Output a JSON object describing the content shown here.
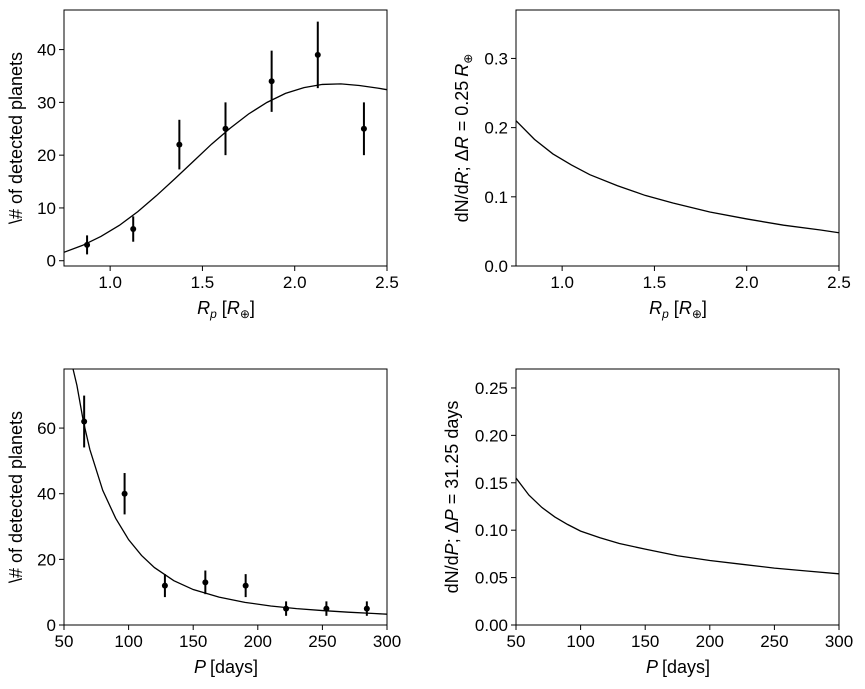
{
  "chart_data": [
    {
      "type": "scatter",
      "position": "top-left",
      "xlabel_main": "R",
      "xlabel_sub": "p",
      "xlabel_unit_main": "R",
      "xlabel_unit_symbol": "⊕",
      "ylabel": "\\# of detected planets",
      "xlim": [
        0.75,
        2.5
      ],
      "ylim": [
        -1,
        47.5
      ],
      "xticks": [
        1.0,
        1.5,
        2.0,
        2.5
      ],
      "xtick_labels": [
        "1.0",
        "1.5",
        "2.0",
        "2.5"
      ],
      "yticks": [
        0,
        10,
        20,
        30,
        40
      ],
      "ytick_labels": [
        "0",
        "10",
        "20",
        "30",
        "40"
      ],
      "series": [
        {
          "kind": "errorbar",
          "x": [
            0.875,
            1.125,
            1.375,
            1.625,
            1.875,
            2.125,
            2.375
          ],
          "y": [
            3,
            6,
            22,
            25,
            34,
            39,
            25
          ],
          "yerr": [
            1.8,
            2.4,
            4.7,
            5.0,
            5.8,
            6.3,
            5.0
          ]
        },
        {
          "kind": "line",
          "x": [
            0.75,
            0.85,
            0.95,
            1.05,
            1.15,
            1.25,
            1.35,
            1.45,
            1.55,
            1.65,
            1.75,
            1.85,
            1.95,
            2.05,
            2.15,
            2.25,
            2.35,
            2.45,
            2.5
          ],
          "y": [
            1.6,
            2.9,
            4.6,
            6.7,
            9.3,
            12.3,
            15.5,
            18.8,
            22.1,
            25.1,
            27.8,
            30.0,
            31.7,
            32.8,
            33.4,
            33.5,
            33.2,
            32.7,
            32.4
          ]
        }
      ]
    },
    {
      "type": "line",
      "position": "top-right",
      "xlabel_main": "R",
      "xlabel_sub": "p",
      "xlabel_unit_main": "R",
      "xlabel_unit_symbol": "⊕",
      "ylabel_prefix": "dN/d",
      "ylabel_var": "R",
      "ylabel_sep": "; Δ",
      "ylabel_var2": "R",
      "ylabel_eq": " = 0.25",
      "ylabel_unit": "R",
      "ylabel_symbol": "⊕",
      "xlim": [
        0.75,
        2.5
      ],
      "ylim": [
        0.0,
        0.37
      ],
      "xticks": [
        1.0,
        1.5,
        2.0,
        2.5
      ],
      "xtick_labels": [
        "1.0",
        "1.5",
        "2.0",
        "2.5"
      ],
      "yticks": [
        0.0,
        0.1,
        0.2,
        0.3
      ],
      "ytick_labels": [
        "0.0",
        "0.1",
        "0.2",
        "0.3"
      ],
      "series": [
        {
          "kind": "line",
          "x": [
            0.75,
            0.85,
            0.95,
            1.05,
            1.15,
            1.3,
            1.45,
            1.6,
            1.8,
            2.0,
            2.2,
            2.4,
            2.5
          ],
          "y": [
            0.21,
            0.183,
            0.162,
            0.146,
            0.132,
            0.116,
            0.102,
            0.091,
            0.078,
            0.068,
            0.059,
            0.052,
            0.048
          ]
        }
      ]
    },
    {
      "type": "scatter",
      "position": "bottom-left",
      "xlabel_main": "P",
      "xlabel_unit": "[days]",
      "ylabel": "\\# of detected planets",
      "xlim": [
        50,
        300
      ],
      "ylim": [
        0,
        78
      ],
      "xticks": [
        50,
        100,
        150,
        200,
        250,
        300
      ],
      "xtick_labels": [
        "50",
        "100",
        "150",
        "200",
        "250",
        "300"
      ],
      "yticks": [
        0,
        20,
        40,
        60
      ],
      "ytick_labels": [
        "0",
        "20",
        "40",
        "60"
      ],
      "series": [
        {
          "kind": "errorbar",
          "x": [
            65.6,
            96.9,
            128.1,
            159.4,
            190.6,
            221.9,
            253.1,
            284.4
          ],
          "y": [
            62,
            40,
            12,
            13,
            12,
            5,
            5,
            5
          ],
          "yerr": [
            7.9,
            6.3,
            3.5,
            3.6,
            3.5,
            2.2,
            2.2,
            2.2
          ]
        },
        {
          "kind": "line",
          "x": [
            57,
            60,
            65,
            70,
            80,
            90,
            100,
            110,
            120,
            135,
            150,
            170,
            190,
            210,
            230,
            250,
            270,
            290,
            300
          ],
          "y": [
            78,
            73,
            62,
            53.5,
            41,
            32.5,
            26,
            21.2,
            17.5,
            13.5,
            10.8,
            8.5,
            6.9,
            5.8,
            5.0,
            4.4,
            3.9,
            3.5,
            3.3
          ]
        }
      ]
    },
    {
      "type": "line",
      "position": "bottom-right",
      "xlabel_main": "P",
      "xlabel_unit": "[days]",
      "ylabel_prefix": "dN/d",
      "ylabel_var": "P",
      "ylabel_sep": "; Δ",
      "ylabel_var2": "P",
      "ylabel_eq": " = 31.25",
      "ylabel_unit": " days",
      "xlim": [
        50,
        300
      ],
      "ylim": [
        0.0,
        0.27
      ],
      "xticks": [
        50,
        100,
        150,
        200,
        250,
        300
      ],
      "xtick_labels": [
        "50",
        "100",
        "150",
        "200",
        "250",
        "300"
      ],
      "yticks": [
        0.0,
        0.05,
        0.1,
        0.15,
        0.2,
        0.25
      ],
      "ytick_labels": [
        "0.00",
        "0.05",
        "0.10",
        "0.15",
        "0.20",
        "0.25"
      ],
      "series": [
        {
          "kind": "line",
          "x": [
            50,
            60,
            70,
            80,
            90,
            100,
            115,
            130,
            150,
            175,
            200,
            225,
            250,
            275,
            300
          ],
          "y": [
            0.155,
            0.137,
            0.124,
            0.114,
            0.106,
            0.099,
            0.092,
            0.086,
            0.08,
            0.073,
            0.068,
            0.064,
            0.06,
            0.057,
            0.054
          ]
        }
      ]
    }
  ]
}
